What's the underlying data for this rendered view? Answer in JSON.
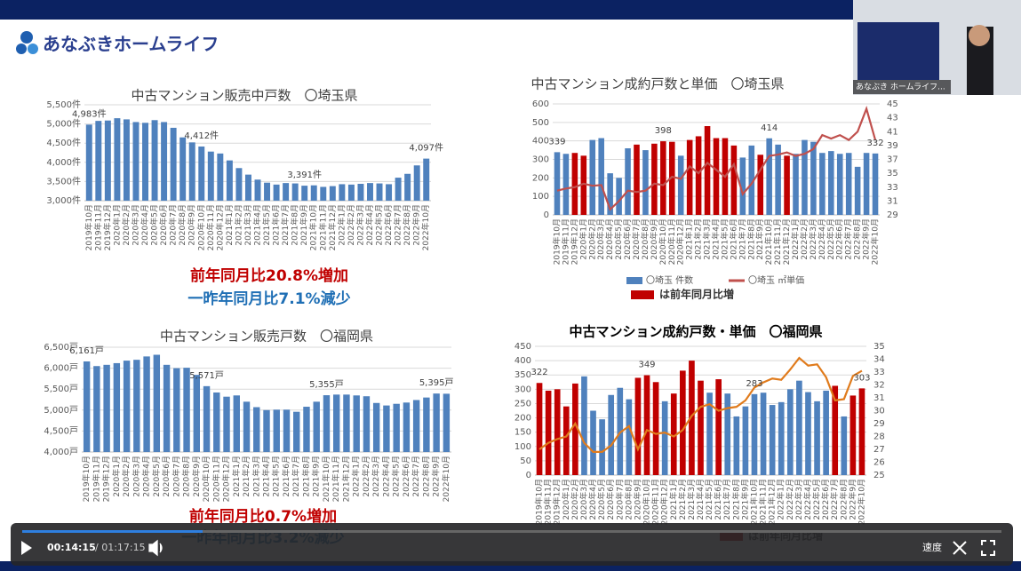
{
  "header": {
    "logo": "あなぶきホームライフ"
  },
  "webcam": {
    "caption": "あなぶき ホームライフ..."
  },
  "player": {
    "current": "00:14:15",
    "total": "/ 01:17:15",
    "speed": "速度"
  },
  "chart_data": [
    {
      "type": "bar",
      "title": "中古マンション販売中戸数　〇埼玉県",
      "categories": [
        "2019年10月",
        "2019年11月",
        "2019年12月",
        "2020年1月",
        "2020年2月",
        "2020年3月",
        "2020年4月",
        "2020年5月",
        "2020年6月",
        "2020年7月",
        "2020年8月",
        "2020年9月",
        "2020年10月",
        "2020年11月",
        "2020年12月",
        "2021年1月",
        "2021年2月",
        "2021年3月",
        "2021年4月",
        "2021年5月",
        "2021年6月",
        "2021年7月",
        "2021年8月",
        "2021年9月",
        "2021年10月",
        "2021年11月",
        "2021年12月",
        "2022年1月",
        "2022年2月",
        "2022年3月",
        "2022年4月",
        "2022年5月",
        "2022年6月",
        "2022年7月",
        "2022年8月",
        "2022年9月",
        "2022年10月"
      ],
      "series": [
        {
          "values": [
            4983,
            5080,
            5090,
            5150,
            5120,
            5050,
            5030,
            5100,
            5050,
            4900,
            4650,
            4520,
            4412,
            4280,
            4230,
            4050,
            3850,
            3680,
            3550,
            3470,
            3420,
            3460,
            3450,
            3391,
            3400,
            3360,
            3380,
            3430,
            3420,
            3440,
            3460,
            3450,
            3430,
            3600,
            3700,
            3920,
            4097
          ],
          "value_labels": [
            "4,983件",
            null,
            null,
            null,
            null,
            null,
            null,
            null,
            null,
            null,
            null,
            null,
            "4,412件",
            null,
            null,
            null,
            null,
            null,
            null,
            null,
            null,
            null,
            null,
            "3,391件",
            null,
            null,
            null,
            null,
            null,
            null,
            null,
            null,
            null,
            null,
            null,
            null,
            "4,097件"
          ],
          "color": "#4f81bd"
        }
      ],
      "ylim": [
        3000,
        5500
      ],
      "yticks": [
        {
          "value": 3000,
          "label": "3,000件"
        },
        {
          "value": 3500,
          "label": "3,500件"
        },
        {
          "value": 4000,
          "label": "4,000件"
        },
        {
          "value": 4500,
          "label": "4,500件"
        },
        {
          "value": 5000,
          "label": "5,000件"
        },
        {
          "value": 5500,
          "label": "5,500件"
        }
      ],
      "grid": true,
      "annotations": [
        {
          "text": "前年同月比20.8%増加",
          "color": "#c00000"
        },
        {
          "text": "一昨年同月比7.1%減少",
          "color": "#1f6fb5"
        }
      ]
    },
    {
      "type": "bar-line",
      "title": "中古マンション成約戸数と単価　〇埼玉県",
      "categories": [
        "2019年10月",
        "2019年11月",
        "2019年12月",
        "2020年1月",
        "2020年2月",
        "2020年3月",
        "2020年4月",
        "2020年5月",
        "2020年6月",
        "2020年7月",
        "2020年8月",
        "2020年9月",
        "2020年10月",
        "2020年11月",
        "2020年12月",
        "2021年1月",
        "2021年2月",
        "2021年3月",
        "2021年4月",
        "2021年5月",
        "2021年6月",
        "2021年7月",
        "2021年8月",
        "2021年9月",
        "2021年10月",
        "2021年11月",
        "2021年12月",
        "2022年1月",
        "2022年2月",
        "2022年3月",
        "2022年4月",
        "2022年5月",
        "2022年6月",
        "2022年7月",
        "2022年8月",
        "2022年9月",
        "2022年10月"
      ],
      "series": [
        {
          "name": "〇埼玉 件数",
          "color": "#4f81bd",
          "values": [
            339,
            330,
            335,
            320,
            405,
            415,
            225,
            200,
            360,
            380,
            350,
            385,
            398,
            395,
            320,
            405,
            425,
            480,
            415,
            415,
            375,
            310,
            375,
            325,
            414,
            380,
            320,
            330,
            405,
            395,
            335,
            345,
            330,
            335,
            260,
            335,
            332
          ],
          "colors": [
            "#4f81bd",
            "#4f81bd",
            "#c00000",
            "#c00000",
            "#4f81bd",
            "#4f81bd",
            "#4f81bd",
            "#4f81bd",
            "#4f81bd",
            "#c00000",
            "#4f81bd",
            "#c00000",
            "#c00000",
            "#c00000",
            "#4f81bd",
            "#c00000",
            "#c00000",
            "#c00000",
            "#c00000",
            "#c00000",
            "#c00000",
            "#4f81bd",
            "#4f81bd",
            "#c00000",
            "#4f81bd",
            "#4f81bd",
            "#c00000",
            "#4f81bd",
            "#4f81bd",
            "#4f81bd",
            "#4f81bd",
            "#4f81bd",
            "#4f81bd",
            "#4f81bd",
            "#4f81bd",
            "#4f81bd",
            "#4f81bd"
          ],
          "value_labels": [
            "339",
            null,
            null,
            null,
            null,
            null,
            null,
            null,
            null,
            null,
            null,
            null,
            "398",
            null,
            null,
            null,
            null,
            null,
            null,
            null,
            null,
            null,
            null,
            null,
            "414",
            null,
            null,
            null,
            null,
            null,
            null,
            null,
            null,
            null,
            null,
            null,
            "332"
          ]
        },
        {
          "name": "〇埼玉 ㎡単価",
          "color": "#c0504d",
          "axis": "y2",
          "values": [
            32.5,
            32.8,
            33,
            33.5,
            33.2,
            33.3,
            29.8,
            31,
            32.5,
            32.3,
            32.5,
            33.5,
            33.3,
            34.5,
            34.2,
            36,
            35,
            36.5,
            35.5,
            34.5,
            36.3,
            32,
            33.5,
            35.5,
            37.5,
            37.7,
            38,
            37.5,
            37.8,
            38.5,
            40.5,
            40,
            40.5,
            39.8,
            41,
            44.3,
            39.8
          ]
        }
      ],
      "increase_legend": {
        "name": "は前年同月比増",
        "color": "#c00000"
      },
      "ylim": [
        0,
        600
      ],
      "yticks": [
        0,
        100,
        200,
        300,
        400,
        500,
        600
      ],
      "y2lim": [
        29,
        45
      ],
      "y2ticks": [
        29,
        31,
        33,
        35,
        37,
        39,
        41,
        43,
        45
      ],
      "grid": true
    },
    {
      "type": "bar",
      "title": "中古マンション販売戸数　〇福岡県",
      "categories": [
        "2019年10月",
        "2019年11月",
        "2019年12月",
        "2020年1月",
        "2020年2月",
        "2020年3月",
        "2020年4月",
        "2020年5月",
        "2020年6月",
        "2020年7月",
        "2020年8月",
        "2020年9月",
        "2020年10月",
        "2020年11月",
        "2020年12月",
        "2021年1月",
        "2021年2月",
        "2021年3月",
        "2021年4月",
        "2021年5月",
        "2021年6月",
        "2021年7月",
        "2021年8月",
        "2021年9月",
        "2021年10月",
        "2021年11月",
        "2021年12月",
        "2022年1月",
        "2022年2月",
        "2022年3月",
        "2022年4月",
        "2022年5月",
        "2022年6月",
        "2022年7月",
        "2022年8月",
        "2022年9月",
        "2022年10月"
      ],
      "series": [
        {
          "values": [
            6161,
            6050,
            6080,
            6120,
            6180,
            6200,
            6280,
            6320,
            6080,
            6000,
            6010,
            5840,
            5571,
            5420,
            5320,
            5350,
            5200,
            5070,
            5000,
            5010,
            5010,
            4960,
            5080,
            5200,
            5355,
            5370,
            5370,
            5350,
            5330,
            5170,
            5110,
            5150,
            5180,
            5240,
            5300,
            5395,
            5390
          ],
          "value_labels": [
            "6,161戸",
            null,
            null,
            null,
            null,
            null,
            null,
            null,
            null,
            null,
            null,
            null,
            "5,571戸",
            null,
            null,
            null,
            null,
            null,
            null,
            null,
            null,
            null,
            null,
            null,
            "5,355戸",
            null,
            null,
            null,
            null,
            null,
            null,
            null,
            null,
            null,
            null,
            "5,395戸",
            null
          ],
          "color": "#4f81bd"
        }
      ],
      "ylim": [
        4000,
        6500
      ],
      "yticks": [
        {
          "value": 4000,
          "label": "4,000戸"
        },
        {
          "value": 4500,
          "label": "4,500戸"
        },
        {
          "value": 5000,
          "label": "5,000戸"
        },
        {
          "value": 5500,
          "label": "5,500戸"
        },
        {
          "value": 6000,
          "label": "6,000戸"
        },
        {
          "value": 6500,
          "label": "6,500戸"
        }
      ],
      "grid": true,
      "annotations": [
        {
          "text": "前年同月比0.7%増加",
          "color": "#c00000"
        },
        {
          "text": "一昨年同月比3.2%減少",
          "color": "#1f6fb5"
        }
      ]
    },
    {
      "type": "bar-line",
      "title": "中古マンション成約戸数・単価　〇福岡県",
      "categories": [
        "2019年10月",
        "2019年11月",
        "2019年12月",
        "2020年1月",
        "2020年2月",
        "2020年3月",
        "2020年4月",
        "2020年5月",
        "2020年6月",
        "2020年7月",
        "2020年8月",
        "2020年9月",
        "2020年10月",
        "2020年11月",
        "2020年12月",
        "2021年1月",
        "2021年2月",
        "2021年3月",
        "2021年4月",
        "2021年5月",
        "2021年6月",
        "2021年7月",
        "2021年8月",
        "2021年9月",
        "2021年10月",
        "2021年11月",
        "2021年12月",
        "2022年1月",
        "2022年2月",
        "2022年3月",
        "2022年4月",
        "2022年5月",
        "2022年6月",
        "2022年7月",
        "2022年8月",
        "2022年9月",
        "2022年10月"
      ],
      "series": [
        {
          "color": "#4f81bd",
          "values": [
            322,
            295,
            300,
            240,
            320,
            345,
            225,
            195,
            280,
            305,
            265,
            340,
            349,
            325,
            258,
            285,
            365,
            400,
            330,
            288,
            335,
            285,
            205,
            240,
            283,
            288,
            245,
            255,
            300,
            330,
            290,
            258,
            295,
            312,
            205,
            278,
            303
          ],
          "colors": [
            "#c00000",
            "#c00000",
            "#c00000",
            "#c00000",
            "#c00000",
            "#4f81bd",
            "#4f81bd",
            "#4f81bd",
            "#4f81bd",
            "#4f81bd",
            "#4f81bd",
            "#c00000",
            "#c00000",
            "#c00000",
            "#4f81bd",
            "#c00000",
            "#c00000",
            "#c00000",
            "#c00000",
            "#4f81bd",
            "#c00000",
            "#4f81bd",
            "#4f81bd",
            "#4f81bd",
            "#4f81bd",
            "#4f81bd",
            "#4f81bd",
            "#4f81bd",
            "#4f81bd",
            "#4f81bd",
            "#4f81bd",
            "#4f81bd",
            "#4f81bd",
            "#c00000",
            "#4f81bd",
            "#c00000",
            "#c00000"
          ],
          "value_labels": [
            "322",
            null,
            null,
            null,
            null,
            null,
            null,
            null,
            null,
            null,
            null,
            null,
            "349",
            null,
            null,
            null,
            null,
            null,
            null,
            null,
            null,
            null,
            null,
            null,
            "283",
            null,
            null,
            null,
            null,
            null,
            null,
            null,
            null,
            null,
            null,
            null,
            "303"
          ]
        },
        {
          "color": "#e07b1c",
          "axis": "y2",
          "values": [
            27,
            27.5,
            27.8,
            28,
            29,
            27.5,
            26.8,
            26.8,
            27.3,
            28.3,
            28.8,
            27,
            28.5,
            28.2,
            28.3,
            28,
            28.5,
            29.6,
            30.3,
            30.5,
            30,
            30.2,
            30.3,
            30.8,
            31.8,
            32.2,
            32.5,
            32.4,
            33.2,
            34.1,
            33.5,
            33.6,
            32.6,
            30.8,
            30.9,
            32.7,
            33.1
          ]
        }
      ],
      "increase_legend": {
        "name": "は前年同月比増",
        "color": "#c00000"
      },
      "ylim": [
        0,
        450
      ],
      "yticks": [
        0,
        50,
        100,
        150,
        200,
        250,
        300,
        350,
        400,
        450
      ],
      "y2lim": [
        25,
        35
      ],
      "y2ticks": [
        25,
        26,
        27,
        28,
        29,
        30,
        31,
        32,
        33,
        34,
        35
      ],
      "grid": true
    }
  ]
}
